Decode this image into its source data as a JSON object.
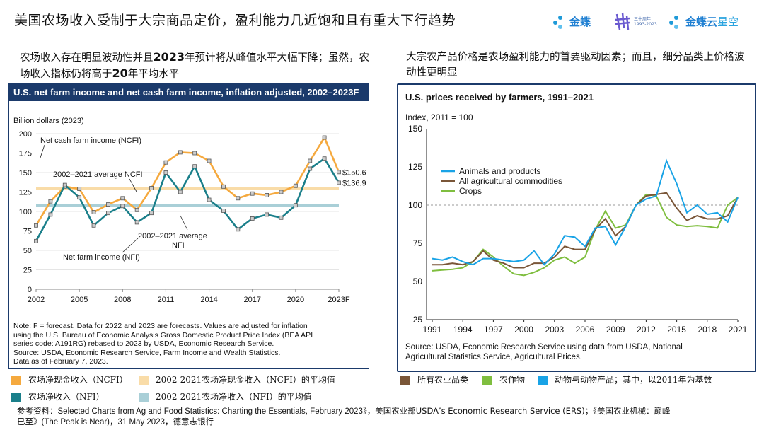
{
  "page": {
    "title": "美国农场收入受制于大宗商品定价，盈利能力几近饱和且有重大下行趋势",
    "logos": {
      "jindie": "金蝶",
      "anniversary_line1": "三十周年",
      "anniversary_line2": "1993-2023",
      "jindie_cloud": "金蝶云",
      "xingkong": "星空"
    },
    "left_subtitle": {
      "part1": "农场收入存在明显波动性并且",
      "year": "2023",
      "part2": "年预计将从峰值水平大幅下降；虽然，农场收入指标仍将高于",
      "years_count": "20",
      "part3": "年平均水平"
    },
    "right_subtitle": "大宗农产品价格是农场盈利能力的首要驱动因素；而且，细分品类上价格波动性更明显",
    "left_legend": {
      "ncfi": "农场净现金收入（NCFI）",
      "ncfi_avg": "2002-2021农场净现金收入（NCFI）的平均值",
      "nfi": "农场净收入（NFI）",
      "nfi_avg": "2002-2021农场净收入（NFI）的平均值"
    },
    "right_legend": {
      "all": "所有农业品类",
      "crops": "农作物",
      "animals": "动物与动物产品；其中，以2011年为基数"
    },
    "footer": {
      "line1_a": "参考资料：",
      "line1_b": "Selected Charts from Ag and Food Statistics: Charting the Essentials, February 2023",
      "line1_c": "》，美国农业部USDA’s Economic Research Service (ERS)；《美国农业机械：巅峰",
      "line2_a": "已至》",
      "line2_b": "(The Peak is Near)，31 May 2023",
      "line2_c": "，德意志银行"
    },
    "colors": {
      "navy": "#1b3a6b",
      "ncfi": "#f5a93e",
      "ncfi_avg": "#f9dca8",
      "nfi": "#1a7f8a",
      "nfi_avg": "#a9cfd7",
      "animals": "#19a3e6",
      "all_ag": "#7a5638",
      "crops": "#7fbe3f"
    }
  },
  "chart_data": [
    {
      "type": "line",
      "title": "U.S. net farm income and net cash farm income, inflation adjusted, 2002–2023F",
      "ylabel": "Billion dollars (2023)",
      "ylim": [
        0,
        200
      ],
      "yticks": [
        "0",
        "25",
        "50",
        "75",
        "100",
        "125",
        "150",
        "175",
        "200"
      ],
      "xticks": [
        "2002",
        "2005",
        "2008",
        "2011",
        "2014",
        "2017",
        "2020",
        "2023F"
      ],
      "x": [
        2002,
        2003,
        2004,
        2005,
        2006,
        2007,
        2008,
        2009,
        2010,
        2011,
        2012,
        2013,
        2014,
        2015,
        2016,
        2017,
        2018,
        2019,
        2020,
        2021,
        2022,
        2023
      ],
      "series": [
        {
          "name": "Net cash farm income (NCFI)",
          "values": [
            82,
            113,
            132,
            129,
            99,
            109,
            117,
            102,
            130,
            163,
            176,
            175,
            165,
            132,
            117,
            123,
            121,
            125,
            133,
            165,
            195,
            150.6
          ]
        },
        {
          "name": "Net farm income (NFI)",
          "values": [
            62,
            96,
            134,
            118,
            82,
            98,
            107,
            86,
            98,
            150,
            125,
            158,
            115,
            101,
            77,
            91,
            96,
            92,
            108,
            155,
            168,
            136.9
          ]
        }
      ],
      "averages": [
        {
          "name": "2002–2021 average NCFI",
          "value": 130
        },
        {
          "name": "2002–2021 average NFI",
          "value": 108
        }
      ],
      "end_labels": [
        "$150.6",
        "$136.9"
      ],
      "annotations": {
        "ncfi": "Net cash farm income (NCFI)",
        "ncfi_avg": "2002–2021 average NCFI",
        "nfi_avg_line1": "2002–2021 average",
        "nfi_avg_line2": "NFI",
        "nfi": "Net farm income (NFI)"
      },
      "note": [
        "Note: F = forecast. Data for 2022 and 2023 are forecasts. Values are adjusted for inflation",
        "using the U.S. Bureau of Economic Analysis Gross Domestic Product Price Index (BEA API",
        "series code: A191RG) rebased to 2023 by USDA, Economic Research Service.",
        "Source: USDA, Economic Research Service, Farm Income and Wealth Statistics.",
        "Data as of February 7, 2023."
      ]
    },
    {
      "type": "line",
      "title": "U.S. prices received by farmers, 1991–2021",
      "ylabel": "Index, 2011 = 100",
      "ylim": [
        25,
        150
      ],
      "yticks": [
        "25",
        "50",
        "75",
        "100",
        "125",
        "150"
      ],
      "xticks": [
        "1991",
        "1994",
        "1997",
        "2000",
        "2003",
        "2006",
        "2009",
        "2012",
        "2015",
        "2018",
        "2021"
      ],
      "reference_line": 100,
      "x": [
        1991,
        1992,
        1993,
        1994,
        1995,
        1996,
        1997,
        1998,
        1999,
        2000,
        2001,
        2002,
        2003,
        2004,
        2005,
        2006,
        2007,
        2008,
        2009,
        2010,
        2011,
        2012,
        2013,
        2014,
        2015,
        2016,
        2017,
        2018,
        2019,
        2020,
        2021
      ],
      "series": [
        {
          "name": "Animals and products",
          "values": [
            65,
            64,
            66,
            63,
            61,
            65,
            65,
            64,
            63,
            64,
            70,
            61,
            68,
            80,
            79,
            73,
            85,
            86,
            74,
            86,
            100,
            104,
            106,
            129,
            114,
            95,
            100,
            94,
            95,
            89,
            105
          ]
        },
        {
          "name": "All agricultural commodities",
          "values": [
            61,
            61,
            62,
            61,
            63,
            70,
            64,
            62,
            59,
            59,
            62,
            62,
            66,
            73,
            71,
            71,
            84,
            91,
            80,
            86,
            100,
            106,
            107,
            108,
            98,
            90,
            93,
            91,
            91,
            93,
            105
          ]
        },
        {
          "name": "Crops",
          "values": [
            57,
            57.5,
            58,
            59,
            63,
            71,
            66,
            60,
            55,
            54,
            56,
            59,
            64,
            66,
            62,
            66,
            84,
            96,
            85,
            87,
            100,
            107,
            106,
            92,
            87,
            86,
            86.5,
            86,
            85,
            100,
            105
          ]
        }
      ],
      "legend": [
        "Animals and products",
        "All agricultural commodities",
        "Crops"
      ],
      "legend_position": "top-left",
      "source": [
        "Source: USDA, Economic Research Service using data from USDA, National",
        "Agricultural Statistics Service, Agricultural Prices."
      ]
    }
  ]
}
